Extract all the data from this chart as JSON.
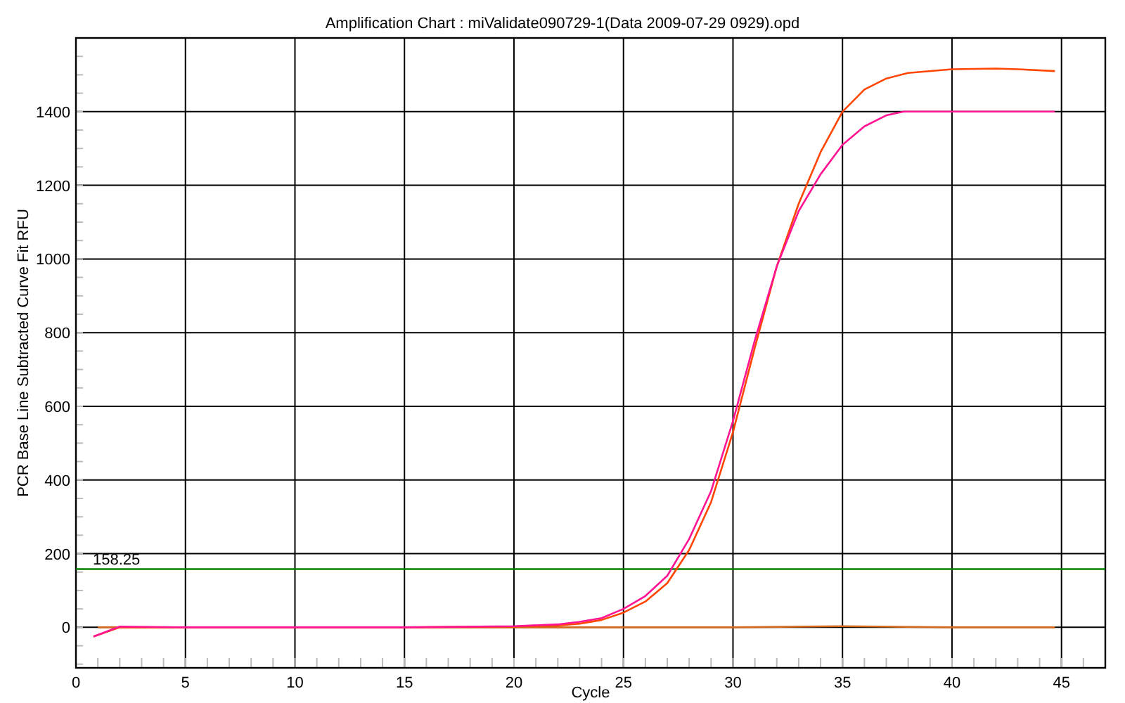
{
  "chart_data": {
    "type": "line",
    "title": "Amplification Chart : miValidate090729-1(Data 2009-07-29 0929).opd",
    "xlabel": "Cycle",
    "ylabel": "PCR Base Line Subtracted Curve Fit RFU",
    "xlim": [
      0,
      47
    ],
    "xticks": [
      0,
      5,
      10,
      15,
      20,
      25,
      30,
      35,
      40,
      45
    ],
    "ylim": [
      -110,
      1600
    ],
    "yticks": [
      0,
      200,
      400,
      600,
      800,
      1000,
      1200,
      1400
    ],
    "grid": true,
    "legend": false,
    "line_style": "solid",
    "series": [
      {
        "color": "#d2691e",
        "x": [
          1,
          5,
          10,
          15,
          20,
          25,
          30,
          35,
          40,
          44.7
        ],
        "values": [
          0,
          0,
          0,
          0,
          0,
          0,
          0,
          3,
          0,
          0
        ]
      },
      {
        "color": "#ff4500",
        "x": [
          0.8,
          2,
          5,
          10,
          15,
          20,
          22,
          23,
          24,
          25,
          26,
          27,
          28,
          29,
          30,
          31,
          32,
          33,
          34,
          35,
          36,
          37,
          38,
          40,
          42,
          43,
          44.7
        ],
        "values": [
          -25,
          0,
          0,
          0,
          0,
          2,
          5,
          10,
          20,
          40,
          70,
          120,
          210,
          340,
          530,
          760,
          980,
          1150,
          1290,
          1400,
          1460,
          1490,
          1505,
          1515,
          1517,
          1515,
          1510
        ]
      },
      {
        "color": "#ff1493",
        "x": [
          0.8,
          2,
          5,
          10,
          15,
          20,
          22,
          23,
          24,
          25,
          26,
          27,
          28,
          29,
          30,
          31,
          32,
          33,
          34,
          35,
          36,
          37,
          37.8,
          44.7
        ],
        "values": [
          -25,
          2,
          0,
          0,
          0,
          3,
          8,
          15,
          25,
          50,
          85,
          140,
          240,
          370,
          560,
          780,
          980,
          1130,
          1230,
          1310,
          1360,
          1390,
          1400,
          1400
        ]
      }
    ],
    "ref_lines": [
      {
        "axis": "y",
        "value": 158.25,
        "label": "158.25",
        "color": "#008000"
      }
    ]
  }
}
